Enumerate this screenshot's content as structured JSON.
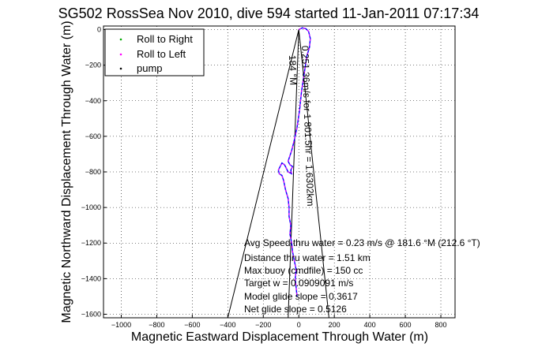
{
  "figure": {
    "title": "SG502 RossSea Nov 2010, dive 594 started 11-Jan-2011 07:17:34",
    "xlabel": "Magnetic Eastward Displacement Through Water (m)",
    "ylabel": "Magnetic Northward Displacement Through Water (m)"
  },
  "legend": {
    "items": [
      {
        "label": "Roll to Right",
        "marker": "dot",
        "color": "#00aa00"
      },
      {
        "label": "Roll to Left",
        "marker": "dot",
        "color": "#ff00ff"
      },
      {
        "label": "pump",
        "marker": "dot",
        "color": "#000000"
      }
    ]
  },
  "annotations": {
    "leg_label": "0.251 36m/s for 1 801.5hr = 1.6302km",
    "heading_label": "184 °M",
    "stats": [
      "Avg Speed thru water = 0.23 m/s @ 181.6 °M (212.6 °T)",
      "Distance thru water = 1.51 km",
      "Max buoy (cmdfile) = 150 cc",
      "Target w = 0.0909091 m/s",
      "Model glide slope = 0.3617",
      "Net glide slope = 0.5126"
    ]
  },
  "colors": {
    "track": "#0000ff",
    "roll_left": "#ff00ff",
    "roll_right": "#00aa00",
    "lines": "#000000"
  },
  "chart_data": {
    "type": "line",
    "title": "SG502 RossSea Nov 2010, dive 594 started 11-Jan-2011 07:17:34",
    "xlabel": "Magnetic Eastward Displacement Through Water (m)",
    "ylabel": "Magnetic Northward Displacement Through Water (m)",
    "xlim": [
      -1100,
      880
    ],
    "ylim": [
      -1620,
      20
    ],
    "xticks": [
      -1000,
      -800,
      -600,
      -400,
      -200,
      0,
      200,
      400,
      600,
      800
    ],
    "yticks": [
      0,
      -200,
      -400,
      -600,
      -800,
      -1000,
      -1200,
      -1400,
      -1600
    ],
    "grid": true,
    "legend_position": "top-left",
    "series": [
      {
        "name": "track",
        "x": [
          0,
          20,
          40,
          55,
          65,
          60,
          45,
          30,
          15,
          5,
          -10,
          -25,
          -40,
          -60,
          -50,
          -35,
          -45,
          -40,
          -60,
          -80,
          -95,
          -105,
          -115,
          -110,
          -95,
          -85,
          -75,
          -60,
          -55,
          -55,
          -45,
          -50,
          -40,
          -35,
          -25,
          -15,
          -20,
          -10
        ],
        "y": [
          0,
          10,
          5,
          -10,
          -50,
          -100,
          -150,
          -250,
          -350,
          -450,
          -550,
          -620,
          -680,
          -740,
          -760,
          -770,
          -790,
          -810,
          -800,
          -760,
          -750,
          -770,
          -790,
          -810,
          -820,
          -850,
          -900,
          -950,
          -1000,
          -1050,
          -1100,
          -1150,
          -1200,
          -1250,
          -1300,
          -1350,
          -1400,
          -1500
        ]
      },
      {
        "name": "bearing_lines",
        "segments": [
          {
            "x": [
              0,
              170
            ],
            "y": [
              0,
              -1620
            ]
          },
          {
            "x": [
              0,
              -400
            ],
            "y": [
              0,
              -1620
            ]
          },
          {
            "x": [
              0,
              -60
            ],
            "y": [
              0,
              -1620
            ]
          }
        ]
      }
    ]
  }
}
